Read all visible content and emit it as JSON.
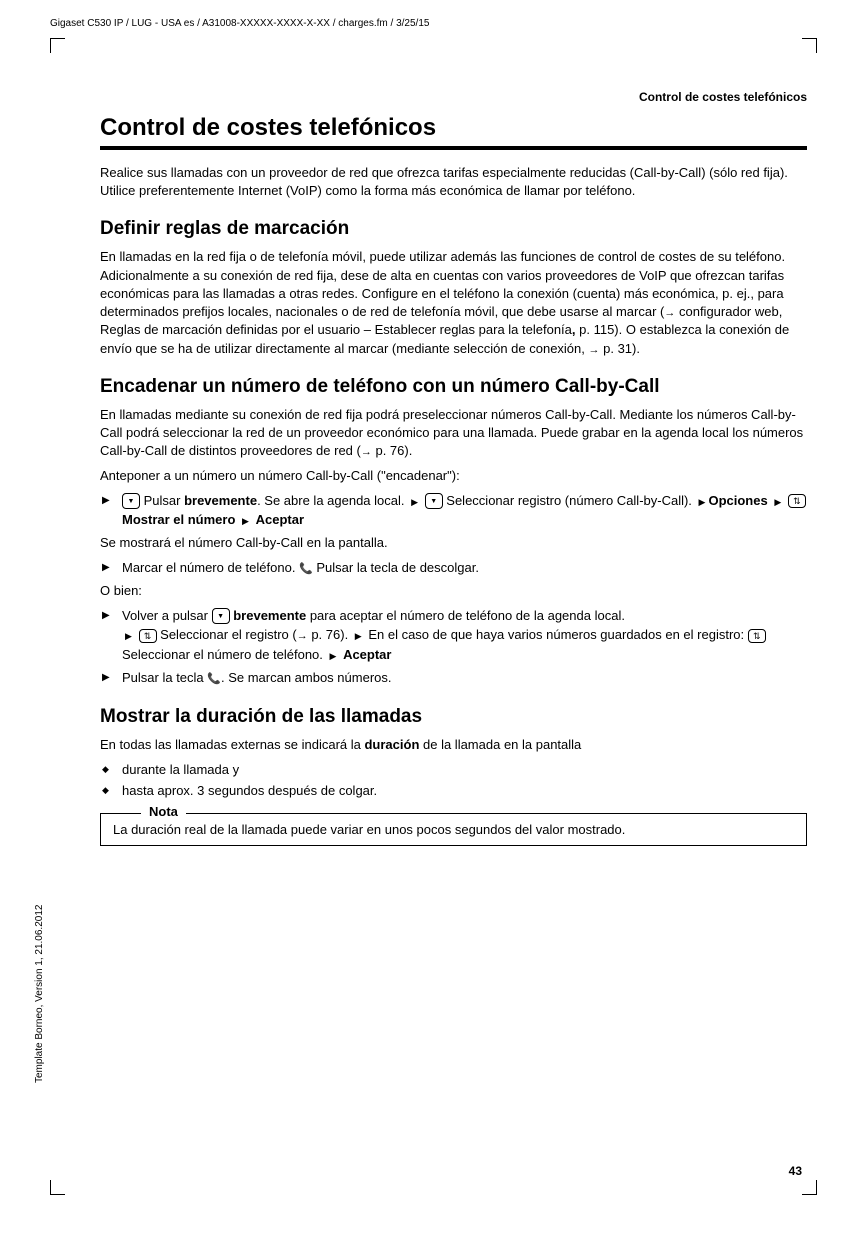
{
  "header": {
    "doc_line": "Gigaset C530 IP / LUG - USA es / A31008-XXXXX-XXXX-X-XX / charges.fm / 3/25/15",
    "vertical": "Template Borneo, Version 1, 21.06.2012",
    "page_header": "Control de costes telefónicos",
    "page_num": "43"
  },
  "title": "Control de costes telefónicos",
  "intro": "Realice sus llamadas con un proveedor de red que ofrezca tarifas especialmente reducidas (Call-by-Call) (sólo red fija). Utilice preferentemente Internet (VoIP) como la forma más económica de llamar por teléfono.",
  "s1": {
    "title": "Definir reglas de marcación",
    "p1": "En llamadas en la red fija o de telefonía móvil, puede utilizar además las funciones de control de costes de su teléfono. Adicionalmente a su conexión de red fija, dese de alta en cuentas con varios proveedores de VoIP que ofrezcan tarifas económicas para las llamadas a otras redes. Configure en el teléfono la conexión (cuenta) más económica, p. ej., para determinados prefijos locales, nacionales o de red de telefonía móvil, que debe usarse al marcar (",
    "p1b": " configurador web, Reglas de marcación definidas por el usuario – Establecer reglas para la telefonía",
    "p1c": " p. 115). O establezca la conexión de envío que se ha de utilizar directamente al marcar (mediante selección de conexión, ",
    "p1d": " p. 31)."
  },
  "s2": {
    "title": "Encadenar un número de teléfono con un número Call-by-Call",
    "p1": "En llamadas mediante su conexión de red fija podrá preseleccionar números Call-by-Call. Mediante los números Call-by-Call podrá seleccionar la red de un proveedor económico para una llamada. Puede grabar en la agenda local los números Call-by-Call de distintos proveedores de red (",
    "p1b": " p. 76).",
    "p2": "Anteponer a un número un número Call-by-Call (\"encadenar\"):",
    "li1a": " Pulsar ",
    "li1_breve": "brevemente",
    "li1b": ". Se abre la agenda local. ",
    "li1c": " Seleccionar registro (número Call-by-Call). ",
    "li1_opciones": "Opciones",
    "li1_mostrar": "Mostrar el número",
    "li1_aceptar": "Aceptar",
    "p3": "Se mostrará el número Call-by-Call en la pantalla.",
    "li2a": "Marcar el número de teléfono. ",
    "li2b": " Pulsar la tecla de descolgar.",
    "p4": "O bien:",
    "li3a": "Volver a pulsar ",
    "li3_breve": "brevemente",
    "li3b": " para aceptar el número de teléfono de la agenda local. ",
    "li3c": " Seleccionar el registro (",
    "li3d": " p. 76). ",
    "li3e": " En el caso de que haya varios números guardados en el registro: ",
    "li3f": " Seleccionar el número de teléfono. ",
    "li3_aceptar": "Aceptar",
    "li4a": "Pulsar la tecla ",
    "li4b": ". Se marcan ambos números."
  },
  "s3": {
    "title": "Mostrar la duración de las llamadas",
    "p1a": "En todas las llamadas externas se indicará la ",
    "p1_dur": "duración",
    "p1b": " de la llamada en la pantalla",
    "b1": "durante la llamada y",
    "b2": "hasta aprox. 3 segundos después de colgar.",
    "note_label": "Nota",
    "note_text": "La duración real de la llamada puede variar en unos pocos segundos del valor mostrado."
  }
}
